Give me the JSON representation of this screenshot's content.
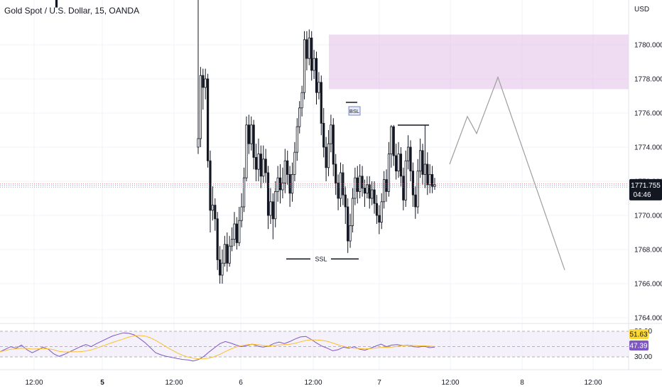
{
  "header": {
    "title": "Gold Spot / U.S. Dollar, 15, OANDA"
  },
  "chart_data": {
    "type": "candlestick",
    "currency": "USD",
    "ylim": [
      1763.8,
      1786.0
    ],
    "y_ticks": [
      "1764.000",
      "1766.000",
      "1768.000",
      "1770.000",
      "1772.000",
      "1774.000",
      "1776.000",
      "1778.000",
      "1780.000"
    ],
    "x_ticks": [
      {
        "label": "12:00",
        "bold": false
      },
      {
        "label": "5",
        "bold": true
      },
      {
        "label": "12:00",
        "bold": false
      },
      {
        "label": "6",
        "bold": false
      },
      {
        "label": "12:00",
        "bold": false
      },
      {
        "label": "7",
        "bold": false
      },
      {
        "label": "12:00",
        "bold": false
      },
      {
        "label": "8",
        "bold": false
      },
      {
        "label": "12:00",
        "bold": false
      }
    ],
    "price_label": {
      "value": "1771.755",
      "countdown": "04:46"
    },
    "resistance_zone": {
      "from": 1777.4,
      "to": 1780.6
    },
    "annotations": [
      {
        "text": "SSL",
        "price": 1767.45
      },
      {
        "text": "BSL",
        "price": 1776.2
      }
    ],
    "projection": [
      1773.0,
      1775.8,
      1774.8,
      1778.1,
      1766.8
    ],
    "candles_segment_1": [
      [
        1786.0,
        1784.3,
        1786.0,
        1784.9
      ],
      [
        1784.9,
        1782.2,
        1786.0,
        1785.1
      ],
      [
        1785.1,
        1784.8,
        1786.0,
        1785.3
      ],
      [
        1785.3,
        1784.5,
        1786.0,
        1785.0
      ]
    ],
    "candles_segment_2": [
      [
        1774.0,
        1774.5,
        1786.0,
        1773.6
      ],
      [
        1774.5,
        1778.2,
        1778.7,
        1774.0
      ],
      [
        1778.2,
        1777.5,
        1778.6,
        1776.2
      ],
      [
        1777.5,
        1778.0,
        1778.6,
        1776.8
      ],
      [
        1778.0,
        1773.2,
        1778.3,
        1772.8
      ],
      [
        1773.2,
        1770.3,
        1773.8,
        1769.0
      ],
      [
        1770.3,
        1770.6,
        1771.7,
        1769.7
      ],
      [
        1770.6,
        1769.8,
        1771.0,
        1769.1
      ],
      [
        1769.8,
        1767.4,
        1770.2,
        1766.8
      ],
      [
        1767.4,
        1766.5,
        1768.2,
        1766.0
      ],
      [
        1766.5,
        1767.2,
        1768.0,
        1766.0
      ],
      [
        1767.2,
        1768.3,
        1768.8,
        1767.0
      ],
      [
        1768.3,
        1767.2,
        1769.0,
        1766.7
      ],
      [
        1767.2,
        1768.2,
        1768.8,
        1767.0
      ],
      [
        1768.2,
        1768.6,
        1769.3,
        1767.9
      ],
      [
        1768.6,
        1769.5,
        1770.2,
        1768.2
      ],
      [
        1769.5,
        1768.4,
        1769.9,
        1768.0
      ],
      [
        1768.4,
        1769.7,
        1770.5,
        1768.2
      ],
      [
        1769.7,
        1770.5,
        1771.3,
        1769.3
      ],
      [
        1770.5,
        1772.2,
        1772.8,
        1770.2
      ],
      [
        1772.2,
        1775.3,
        1775.8,
        1772.0
      ],
      [
        1775.3,
        1774.2,
        1775.9,
        1773.6
      ],
      [
        1774.2,
        1775.3,
        1775.8,
        1773.8
      ],
      [
        1775.3,
        1773.4,
        1775.6,
        1772.7
      ],
      [
        1773.4,
        1772.7,
        1774.2,
        1772.0
      ],
      [
        1772.7,
        1773.6,
        1774.5,
        1772.0
      ],
      [
        1773.6,
        1772.3,
        1774.1,
        1771.6
      ],
      [
        1772.3,
        1773.3,
        1774.1,
        1771.9
      ],
      [
        1773.3,
        1772.5,
        1773.9,
        1771.9
      ],
      [
        1772.5,
        1770.0,
        1772.9,
        1769.2
      ],
      [
        1770.0,
        1770.8,
        1771.6,
        1769.5
      ],
      [
        1770.8,
        1769.8,
        1771.3,
        1768.6
      ],
      [
        1769.8,
        1771.4,
        1772.0,
        1769.3
      ],
      [
        1771.4,
        1772.2,
        1772.9,
        1770.8
      ],
      [
        1772.2,
        1771.5,
        1773.0,
        1770.7
      ],
      [
        1771.5,
        1771.9,
        1772.8,
        1771.0
      ],
      [
        1771.9,
        1773.2,
        1773.9,
        1771.3
      ],
      [
        1773.2,
        1772.4,
        1773.8,
        1771.8
      ],
      [
        1772.4,
        1771.3,
        1772.9,
        1770.5
      ],
      [
        1771.3,
        1772.4,
        1773.1,
        1770.8
      ],
      [
        1772.4,
        1773.7,
        1774.3,
        1772.0
      ],
      [
        1773.7,
        1775.2,
        1775.7,
        1773.2
      ],
      [
        1775.2,
        1776.3,
        1776.7,
        1774.8
      ],
      [
        1776.3,
        1777.2,
        1777.6,
        1775.8
      ],
      [
        1777.2,
        1780.3,
        1780.8,
        1776.8
      ],
      [
        1780.3,
        1779.2,
        1780.8,
        1778.5
      ],
      [
        1779.2,
        1780.4,
        1780.9,
        1778.8
      ],
      [
        1780.4,
        1778.5,
        1780.8,
        1777.9
      ],
      [
        1778.5,
        1779.2,
        1779.7,
        1778.0
      ],
      [
        1779.2,
        1777.2,
        1779.6,
        1776.5
      ],
      [
        1777.2,
        1777.8,
        1778.4,
        1776.8
      ],
      [
        1777.8,
        1775.4,
        1778.2,
        1774.7
      ],
      [
        1775.4,
        1774.0,
        1776.3,
        1773.4
      ],
      [
        1774.0,
        1772.8,
        1774.6,
        1772.0
      ],
      [
        1772.8,
        1774.2,
        1775.0,
        1772.3
      ],
      [
        1774.2,
        1775.3,
        1775.9,
        1773.7
      ],
      [
        1775.3,
        1773.0,
        1775.7,
        1772.3
      ],
      [
        1773.0,
        1771.9,
        1773.6,
        1771.2
      ],
      [
        1771.9,
        1771.0,
        1772.4,
        1770.3
      ],
      [
        1771.0,
        1772.5,
        1773.1,
        1770.5
      ],
      [
        1772.5,
        1771.2,
        1773.0,
        1770.6
      ],
      [
        1771.2,
        1770.5,
        1771.7,
        1769.5
      ],
      [
        1770.5,
        1768.5,
        1771.0,
        1767.8
      ],
      [
        1768.5,
        1769.4,
        1770.1,
        1768.1
      ],
      [
        1769.4,
        1771.0,
        1771.6,
        1769.0
      ],
      [
        1771.0,
        1772.2,
        1772.8,
        1770.6
      ],
      [
        1772.2,
        1771.4,
        1772.9,
        1770.7
      ],
      [
        1771.4,
        1772.3,
        1773.0,
        1771.0
      ],
      [
        1772.3,
        1771.6,
        1772.9,
        1771.1
      ],
      [
        1771.6,
        1771.3,
        1772.1,
        1770.5
      ],
      [
        1771.3,
        1771.8,
        1772.3,
        1771.0
      ],
      [
        1771.8,
        1771.0,
        1772.3,
        1770.4
      ],
      [
        1771.0,
        1771.5,
        1772.0,
        1770.6
      ],
      [
        1771.5,
        1770.7,
        1772.0,
        1770.1
      ],
      [
        1770.7,
        1770.0,
        1771.2,
        1769.5
      ],
      [
        1770.0,
        1769.6,
        1770.6,
        1768.9
      ],
      [
        1769.6,
        1770.8,
        1771.3,
        1769.2
      ],
      [
        1770.8,
        1772.1,
        1772.6,
        1770.4
      ],
      [
        1772.1,
        1771.4,
        1772.7,
        1770.8
      ],
      [
        1771.4,
        1773.6,
        1774.3,
        1771.1
      ],
      [
        1773.6,
        1775.2,
        1775.3,
        1772.8
      ],
      [
        1775.2,
        1773.5,
        1775.3,
        1772.9
      ],
      [
        1773.5,
        1772.6,
        1774.2,
        1772.1
      ],
      [
        1772.6,
        1773.6,
        1774.3,
        1772.2
      ],
      [
        1773.6,
        1772.3,
        1774.0,
        1771.7
      ],
      [
        1772.3,
        1770.9,
        1772.8,
        1770.3
      ],
      [
        1770.9,
        1773.2,
        1773.8,
        1770.5
      ],
      [
        1773.2,
        1774.0,
        1774.7,
        1772.7
      ],
      [
        1774.0,
        1772.6,
        1774.4,
        1772.0
      ],
      [
        1772.6,
        1771.2,
        1773.1,
        1770.5
      ],
      [
        1771.2,
        1770.5,
        1771.7,
        1769.8
      ],
      [
        1770.5,
        1772.6,
        1773.3,
        1770.1
      ],
      [
        1772.6,
        1773.8,
        1774.5,
        1772.2
      ],
      [
        1773.8,
        1772.4,
        1774.2,
        1771.8
      ],
      [
        1772.4,
        1773.0,
        1775.3,
        1771.6
      ],
      [
        1773.0,
        1771.8,
        1773.7,
        1771.2
      ],
      [
        1771.8,
        1772.4,
        1773.0,
        1771.3
      ],
      [
        1772.4,
        1771.7,
        1772.9,
        1771.3
      ],
      [
        1771.7,
        1771.8,
        1772.2,
        1771.5
      ]
    ],
    "rsi": {
      "levels": [
        "80.00",
        "51.63",
        "47.39",
        "30.00"
      ],
      "values": [
        40,
        45,
        50,
        47,
        53,
        44,
        38,
        43,
        49,
        45,
        36,
        31,
        35,
        40,
        45,
        50,
        54,
        50,
        56,
        61,
        66,
        71,
        74,
        77,
        76,
        73,
        66,
        58,
        48,
        38,
        34,
        31,
        29,
        27,
        25,
        24,
        22,
        25,
        31,
        40,
        48,
        56,
        60,
        57,
        53,
        50,
        52,
        55,
        51,
        49,
        51,
        56,
        59,
        56,
        60,
        65,
        69,
        70,
        64,
        57,
        51,
        47,
        42,
        44,
        49,
        47,
        50,
        45,
        43,
        47,
        51,
        55,
        50,
        53,
        54,
        52,
        53,
        50,
        49,
        51,
        48,
        49
      ]
    }
  }
}
